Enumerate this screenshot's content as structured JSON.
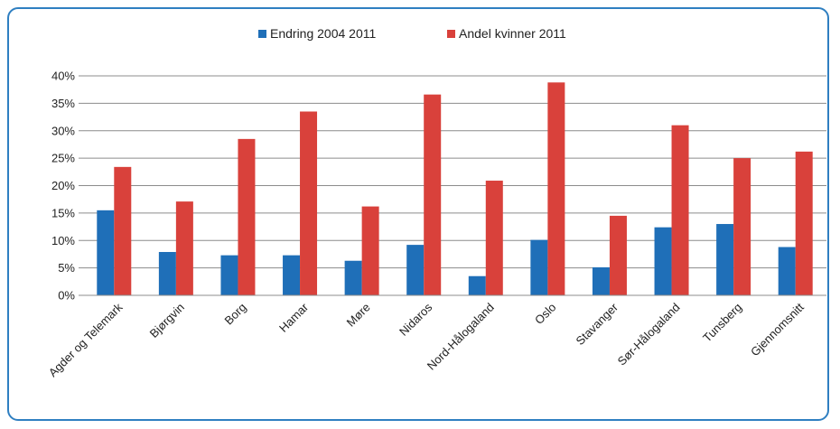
{
  "chart_data": {
    "type": "bar",
    "title": "",
    "xlabel": "",
    "ylabel": "",
    "ylim": [
      0,
      0.4
    ],
    "ytick_step": 0.05,
    "ytick_labels": [
      "0%",
      "5%",
      "10%",
      "15%",
      "20%",
      "25%",
      "30%",
      "35%",
      "40%"
    ],
    "grid": true,
    "legend_position": "top-center",
    "categories": [
      "Agder og Telemark",
      "Bjørgvin",
      "Borg",
      "Hamar",
      "Møre",
      "Nidaros",
      "Nord-Hålogaland",
      "Oslo",
      "Stavanger",
      "Sør-Hålogaland",
      "Tunsberg",
      "Gjennomsnitt"
    ],
    "series": [
      {
        "name": "Endring 2004 2011",
        "color": "#1f6fb8",
        "values": [
          0.155,
          0.079,
          0.073,
          0.073,
          0.063,
          0.092,
          0.035,
          0.101,
          0.051,
          0.124,
          0.13,
          0.088
        ]
      },
      {
        "name": "Andel kvinner 2011",
        "color": "#d9413b",
        "values": [
          0.234,
          0.171,
          0.285,
          0.335,
          0.162,
          0.366,
          0.209,
          0.388,
          0.145,
          0.31,
          0.25,
          0.262
        ]
      }
    ]
  }
}
